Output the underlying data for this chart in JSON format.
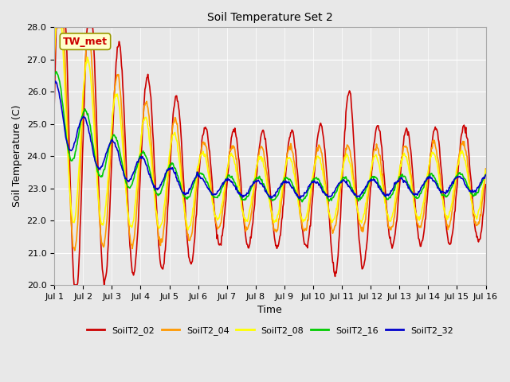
{
  "title": "Soil Temperature Set 2",
  "xlabel": "Time",
  "ylabel": "Soil Temperature (C)",
  "ylim": [
    20.0,
    28.0
  ],
  "yticks": [
    20.0,
    21.0,
    22.0,
    23.0,
    24.0,
    25.0,
    26.0,
    27.0,
    28.0
  ],
  "xtick_labels": [
    "Jul 1",
    "Jul 2",
    "Jul 3",
    "Jul 4",
    "Jul 5",
    "Jul 6",
    "Jul 7",
    "Jul 8",
    "Jul 9",
    "Jul 10",
    "Jul 11",
    "Jul 12",
    "Jul 13",
    "Jul 14",
    "Jul 15",
    "Jul 16"
  ],
  "series_colors": [
    "#cc0000",
    "#ff9900",
    "#ffff00",
    "#00cc00",
    "#0000cc"
  ],
  "series_names": [
    "SoilT2_02",
    "SoilT2_04",
    "SoilT2_08",
    "SoilT2_16",
    "SoilT2_32"
  ],
  "annotation_text": "TW_met",
  "line_width": 1.2,
  "n_days": 15,
  "points_per_day": 48,
  "fig_facecolor": "#e8e8e8",
  "ax_facecolor": "#e8e8e8",
  "grid_color": "#ffffff",
  "title_fontsize": 10,
  "label_fontsize": 9,
  "tick_fontsize": 8
}
